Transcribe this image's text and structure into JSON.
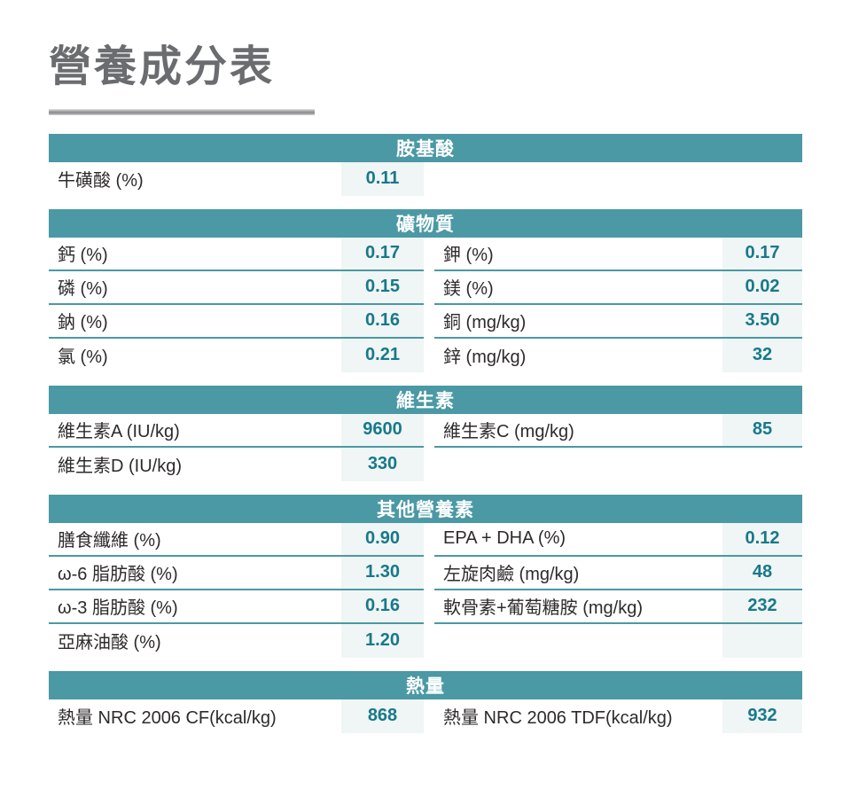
{
  "page": {
    "title": "營養成分表"
  },
  "colors": {
    "header_bg": "#4a99a4",
    "value_text": "#17798a",
    "value_cell_bg": "#f0f5f5",
    "label_text": "#2e2a2b",
    "title_gray": "#6a6c6f"
  },
  "table": {
    "sections": [
      {
        "header": "胺基酸",
        "rows": [
          {
            "left": {
              "label": "牛磺酸 (%)",
              "value": "0.11"
            },
            "right": null
          }
        ]
      },
      {
        "header": "礦物質",
        "rows": [
          {
            "left": {
              "label": "鈣 (%)",
              "value": "0.17"
            },
            "right": {
              "label": "鉀 (%)",
              "value": "0.17"
            }
          },
          {
            "left": {
              "label": "磷 (%)",
              "value": "0.15"
            },
            "right": {
              "label": "鎂 (%)",
              "value": "0.02"
            }
          },
          {
            "left": {
              "label": "鈉 (%)",
              "value": "0.16"
            },
            "right": {
              "label": "銅 (mg/kg)",
              "value": "3.50"
            }
          },
          {
            "left": {
              "label": "氯 (%)",
              "value": "0.21"
            },
            "right": {
              "label": "鋅 (mg/kg)",
              "value": "32"
            }
          }
        ]
      },
      {
        "header": "維生素",
        "rows": [
          {
            "left": {
              "label": "維生素A (IU/kg)",
              "value": "9600"
            },
            "right": {
              "label": "維生素C (mg/kg)",
              "value": "85"
            }
          },
          {
            "left": {
              "label": "維生素D (IU/kg)",
              "value": "330"
            },
            "right": null
          }
        ]
      },
      {
        "header": "其他營養素",
        "rows": [
          {
            "left": {
              "label": "膳食纖維 (%)",
              "value": "0.90"
            },
            "right": {
              "label": "EPA + DHA (%)",
              "value": "0.12"
            }
          },
          {
            "left": {
              "label": "ω-6 脂肪酸 (%)",
              "value": "1.30"
            },
            "right": {
              "label": "左旋肉鹼 (mg/kg)",
              "value": "48"
            }
          },
          {
            "left": {
              "label": "ω-3 脂肪酸 (%)",
              "value": "0.16"
            },
            "right": {
              "label": "軟骨素+葡萄糖胺 (mg/kg)",
              "value": "232"
            }
          },
          {
            "left": {
              "label": "亞麻油酸 (%)",
              "value": "1.20"
            },
            "right": {
              "label": "",
              "value": "",
              "empty_cell": true
            }
          }
        ]
      },
      {
        "header": "熱量",
        "rows": [
          {
            "left": {
              "label": "熱量 NRC 2006 CF(kcal/kg)",
              "value": "868"
            },
            "right": {
              "label": "熱量 NRC 2006 TDF(kcal/kg)",
              "value": "932"
            }
          }
        ]
      }
    ]
  }
}
